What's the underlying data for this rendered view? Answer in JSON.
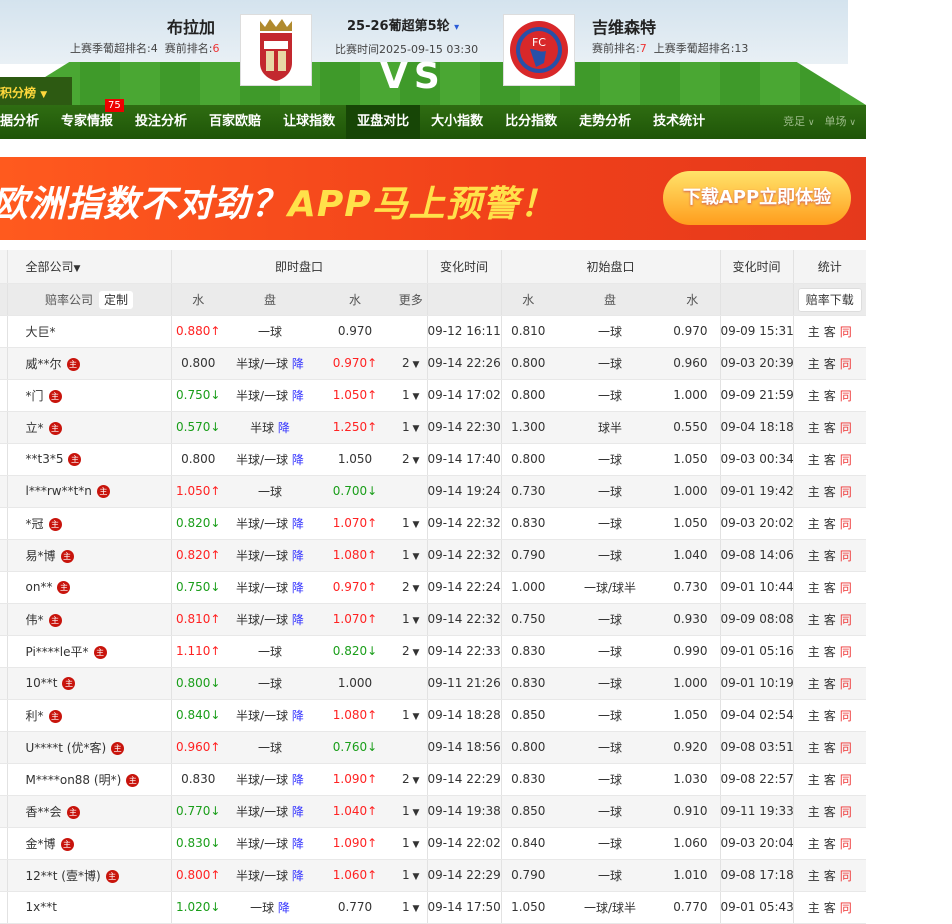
{
  "match": {
    "home": {
      "name": "布拉加",
      "last_season_label": "上赛季葡超排名:4",
      "pre_rank_label": "赛前排名:",
      "pre_rank": "6"
    },
    "away": {
      "name": "吉维森特",
      "last_season_label": "上赛季葡超排名:13",
      "pre_rank_label": "赛前排名:",
      "pre_rank": "7"
    },
    "round": "25-26葡超第5轮",
    "time": "比赛时间2025-09-15 03:30",
    "vs": "VS",
    "away_logo_text": "FC"
  },
  "standings_label": "积分榜",
  "nav": {
    "tabs": [
      "据分析",
      "专家情报",
      "投注分析",
      "百家欧赔",
      "让球指数",
      "亚盘对比",
      "大小指数",
      "比分指数",
      "走势分析",
      "技术统计"
    ],
    "active": "亚盘对比",
    "badge": "75",
    "right": [
      "竞足",
      "单场"
    ]
  },
  "banner": {
    "title_a": "欧洲指数不对劲？",
    "title_b": "APP马上预警！",
    "button": "下载APP立即体验"
  },
  "table": {
    "company_filter": "全部公司",
    "live": "即时盘口",
    "change_time": "变化时间",
    "initial": "初始盘口",
    "stats": "统计",
    "company": "赔率公司",
    "customize": "定制",
    "water": "水",
    "line": "盘",
    "more": "更多",
    "download": "赔率下载",
    "host_badge": "主",
    "stat_links": [
      "主",
      "客",
      "同"
    ],
    "drop_label": "降",
    "rows": [
      [
        "大巨*",
        0,
        "0.880",
        "up",
        "一球",
        0,
        "0.970",
        "",
        "",
        "09-12 16:11",
        "0.810",
        "一球",
        "0.970",
        "09-09 15:31"
      ],
      [
        "威**尔",
        1,
        "0.800",
        "",
        "半球/一球",
        1,
        "0.970",
        "up",
        "2",
        "09-14 22:26",
        "0.800",
        "一球",
        "0.960",
        "09-03 20:39"
      ],
      [
        "*门",
        1,
        "0.750",
        "down",
        "半球/一球",
        1,
        "1.050",
        "up",
        "1",
        "09-14 17:02",
        "0.800",
        "一球",
        "1.000",
        "09-09 21:59"
      ],
      [
        "立*",
        1,
        "0.570",
        "down",
        "半球",
        1,
        "1.250",
        "up",
        "1",
        "09-14 22:30",
        "1.300",
        "球半",
        "0.550",
        "09-04 18:18"
      ],
      [
        "**t3*5",
        1,
        "0.800",
        "",
        "半球/一球",
        1,
        "1.050",
        "",
        "2",
        "09-14 17:40",
        "0.800",
        "一球",
        "1.050",
        "09-03 00:34"
      ],
      [
        "l***rw**t*n",
        1,
        "1.050",
        "up",
        "一球",
        0,
        "0.700",
        "down",
        "",
        "09-14 19:24",
        "0.730",
        "一球",
        "1.000",
        "09-01 19:42"
      ],
      [
        "*冠",
        1,
        "0.820",
        "down",
        "半球/一球",
        1,
        "1.070",
        "up",
        "1",
        "09-14 22:32",
        "0.830",
        "一球",
        "1.050",
        "09-03 20:02"
      ],
      [
        "易*博",
        1,
        "0.820",
        "up",
        "半球/一球",
        1,
        "1.080",
        "up",
        "1",
        "09-14 22:32",
        "0.790",
        "一球",
        "1.040",
        "09-08 14:06"
      ],
      [
        "on**",
        1,
        "0.750",
        "down",
        "半球/一球",
        1,
        "0.970",
        "up",
        "2",
        "09-14 22:24",
        "1.000",
        "一球/球半",
        "0.730",
        "09-01 10:44"
      ],
      [
        "伟*",
        1,
        "0.810",
        "up",
        "半球/一球",
        1,
        "1.070",
        "up",
        "1",
        "09-14 22:32",
        "0.750",
        "一球",
        "0.930",
        "09-09 08:08"
      ],
      [
        "Pi****le平*",
        1,
        "1.110",
        "up",
        "一球",
        0,
        "0.820",
        "down",
        "2",
        "09-14 22:33",
        "0.830",
        "一球",
        "0.990",
        "09-01 05:16"
      ],
      [
        "10**t",
        1,
        "0.800",
        "down",
        "一球",
        0,
        "1.000",
        "",
        "",
        "09-11 21:26",
        "0.830",
        "一球",
        "1.000",
        "09-01 10:19"
      ],
      [
        "利*",
        1,
        "0.840",
        "down",
        "半球/一球",
        1,
        "1.080",
        "up",
        "1",
        "09-14 18:28",
        "0.850",
        "一球",
        "1.050",
        "09-04 02:54"
      ],
      [
        "U****t (优*客)",
        1,
        "0.960",
        "up",
        "一球",
        0,
        "0.760",
        "down",
        "",
        "09-14 18:56",
        "0.800",
        "一球",
        "0.920",
        "09-08 03:51"
      ],
      [
        "M****on88 (明*)",
        1,
        "0.830",
        "",
        "半球/一球",
        1,
        "1.090",
        "up",
        "2",
        "09-14 22:29",
        "0.830",
        "一球",
        "1.030",
        "09-08 22:57"
      ],
      [
        "香**会",
        1,
        "0.770",
        "down",
        "半球/一球",
        1,
        "1.040",
        "up",
        "1",
        "09-14 19:38",
        "0.850",
        "一球",
        "0.910",
        "09-11 19:33"
      ],
      [
        "金*博",
        1,
        "0.830",
        "down",
        "半球/一球",
        1,
        "1.090",
        "up",
        "1",
        "09-14 22:02",
        "0.840",
        "一球",
        "1.060",
        "09-03 20:04"
      ],
      [
        "12**t (壹*博)",
        1,
        "0.800",
        "up",
        "半球/一球",
        1,
        "1.060",
        "up",
        "1",
        "09-14 22:29",
        "0.790",
        "一球",
        "1.010",
        "09-08 17:18"
      ],
      [
        "1x**t",
        0,
        "1.020",
        "down",
        "一球",
        1,
        "0.770",
        "",
        "1",
        "09-14 17:50",
        "1.050",
        "一球/球半",
        "0.770",
        "09-01 05:43"
      ]
    ]
  },
  "colors": {
    "up": "#ff2222",
    "down": "#1a9e1a",
    "nav": "#2f6d12",
    "drop": "#3333ff"
  }
}
